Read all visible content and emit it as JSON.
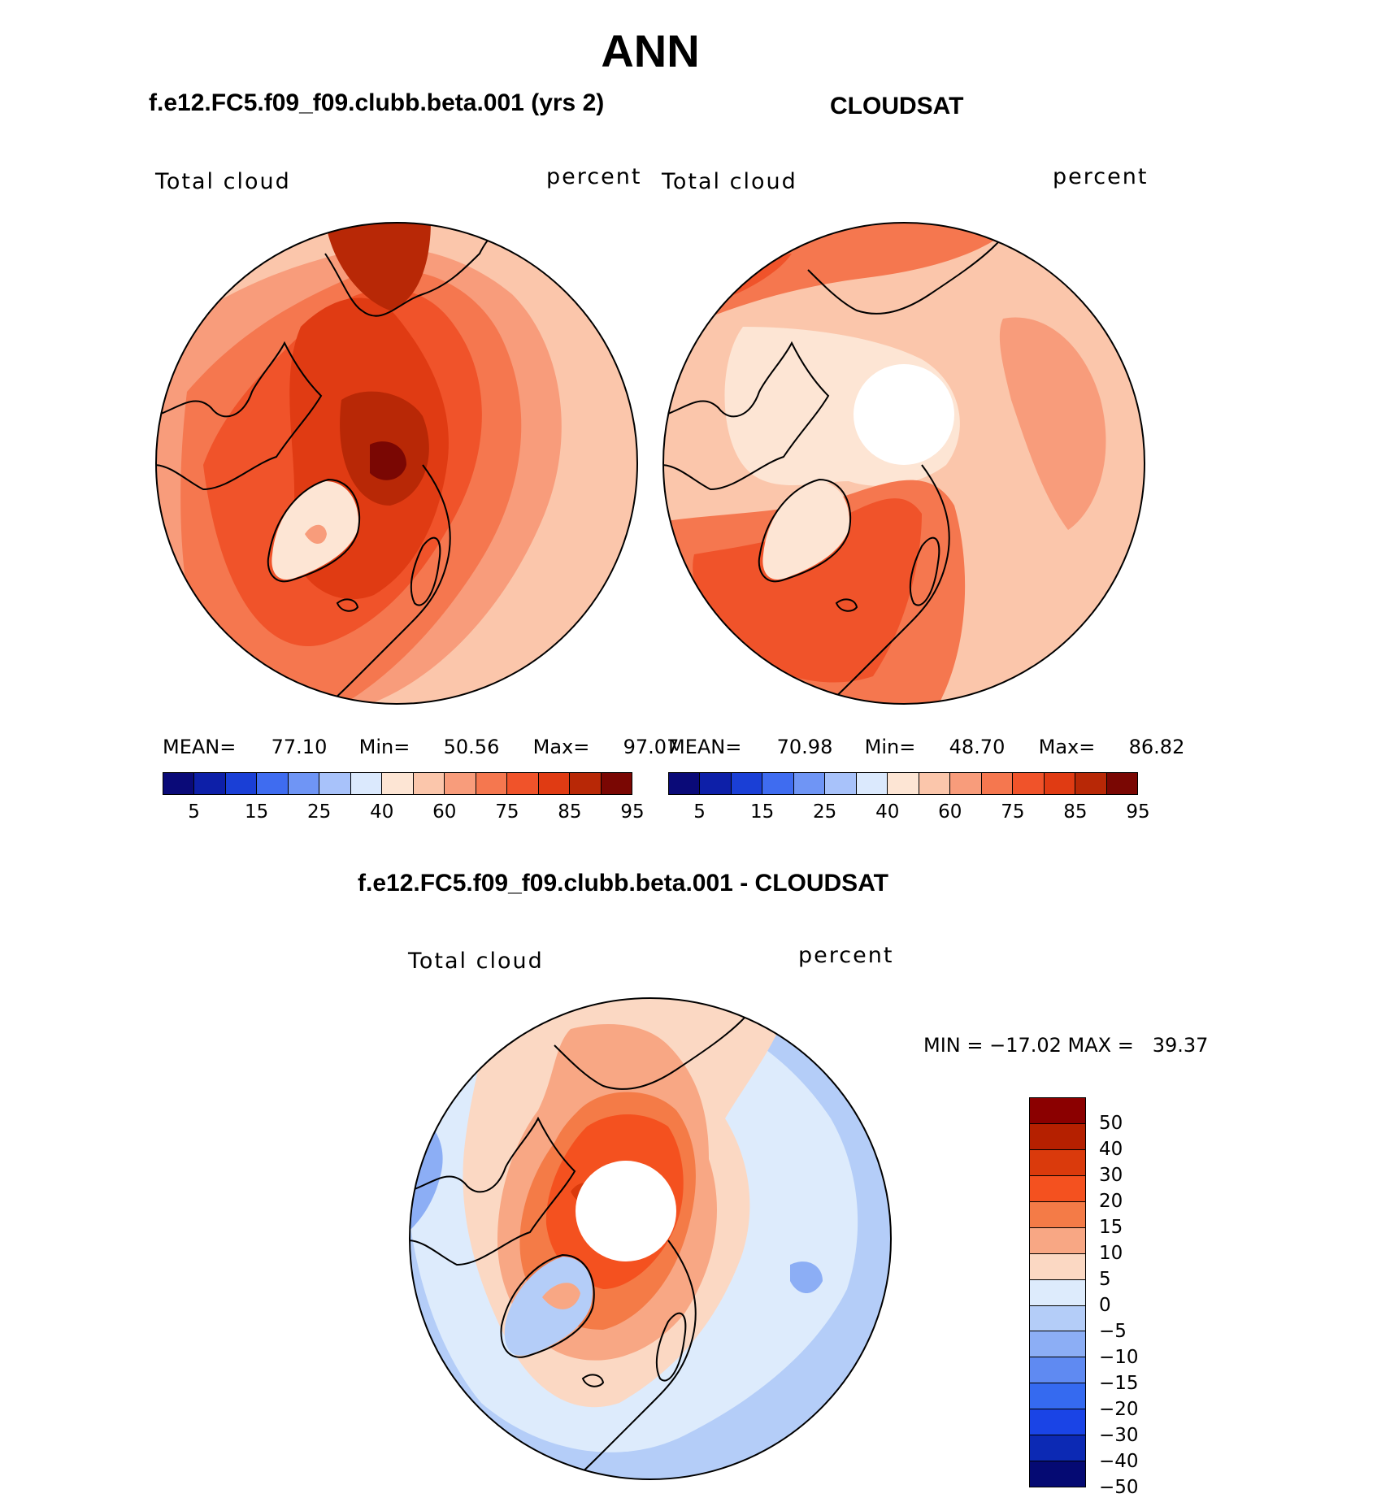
{
  "figure": {
    "title": "ANN",
    "panels": [
      {
        "id": "model",
        "title": "f.e12.FC5.f09_f09.clubb.beta.001 (yrs 2)",
        "variable": "Total cloud",
        "units": "percent",
        "stats": {
          "mean_label": "MEAN=",
          "mean": "77.10",
          "min_label": "Min=",
          "min": "50.56",
          "max_label": "Max=",
          "max": "97.07"
        }
      },
      {
        "id": "obs",
        "title": "CLOUDSAT",
        "variable": "Total cloud",
        "units": "percent",
        "stats": {
          "mean_label": "MEAN=",
          "mean": "70.98",
          "min_label": "Min=",
          "min": "48.70",
          "max_label": "Max=",
          "max": "86.82"
        }
      },
      {
        "id": "diff",
        "title": "f.e12.FC5.f09_f09.clubb.beta.001 - CLOUDSAT",
        "variable": "Total cloud",
        "units": "percent",
        "stats_text": "MIN = −17.02 MAX =   39.37"
      }
    ]
  },
  "colorbars": {
    "absolute": {
      "colors": [
        "#0a0a78",
        "#0d1fa8",
        "#1a3fd6",
        "#3f6cf0",
        "#6f95f5",
        "#a8c2fa",
        "#dbe9fd",
        "#fde5d4",
        "#fbc6ab",
        "#f89c7b",
        "#f5774f",
        "#f0532a",
        "#e03b13",
        "#b82806",
        "#7a0703"
      ],
      "ticks": [
        "5",
        "15",
        "25",
        "40",
        "60",
        "75",
        "85",
        "95"
      ]
    },
    "difference": {
      "colors": [
        "#8b0000",
        "#b52000",
        "#da3a0c",
        "#f4511f",
        "#f47b47",
        "#f8a784",
        "#fbd8c3",
        "#ddebfc",
        "#b4cdf8",
        "#8caef5",
        "#5f8af2",
        "#356af0",
        "#1a44e6",
        "#0c29b4",
        "#050a73"
      ],
      "ticks": [
        "50",
        "40",
        "30",
        "20",
        "15",
        "10",
        "5",
        "0",
        "−5",
        "−10",
        "−15",
        "−20",
        "−30",
        "−40",
        "−50"
      ]
    }
  },
  "map_colors": {
    "c95": "#7a0703",
    "c90": "#b82806",
    "c85": "#e03b13",
    "c80": "#f0532a",
    "c75": "#f5774f",
    "c70": "#f89c7b",
    "c65": "#fbc6ab",
    "c60": "#fde5d4",
    "d50": "#8b0000",
    "d30": "#da3a0c",
    "d20": "#f4511f",
    "d15": "#f47b47",
    "d10": "#f8a784",
    "d5": "#fbd8c3",
    "dm5": "#ddebfc",
    "dm10": "#b4cdf8",
    "dm15": "#8caef5"
  }
}
